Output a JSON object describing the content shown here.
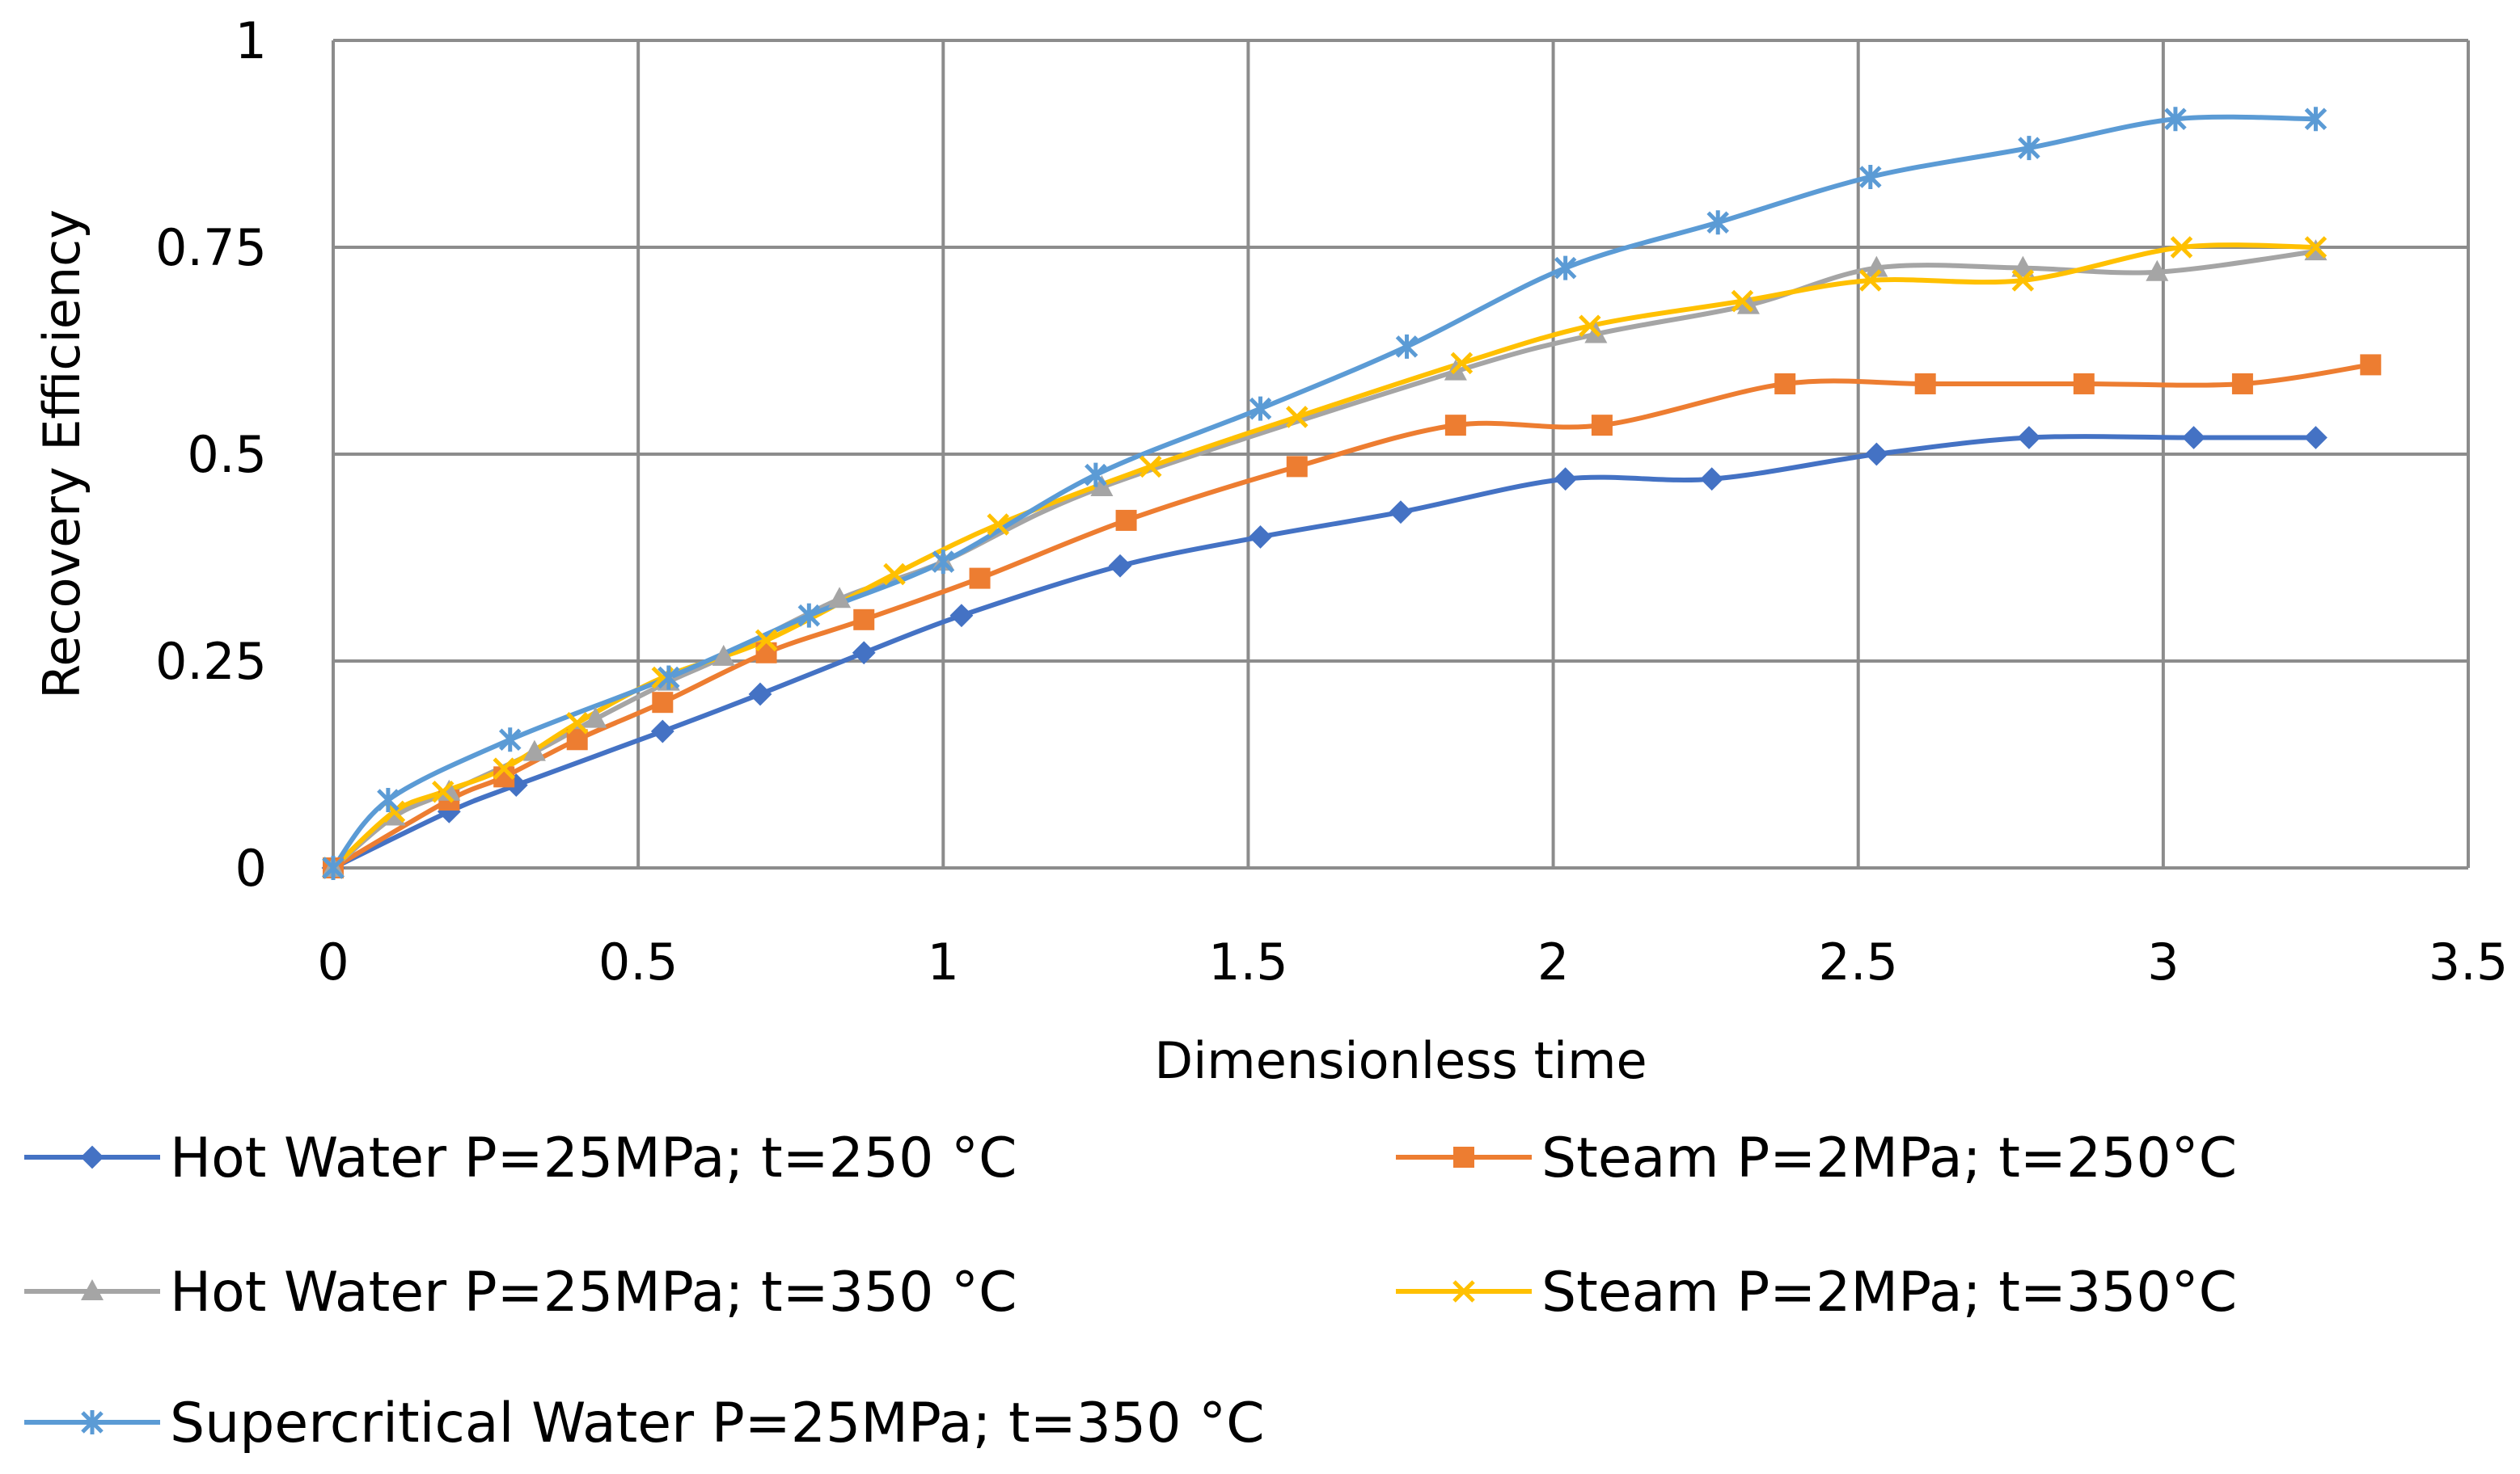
{
  "chart_data": {
    "type": "line",
    "title": "",
    "xlabel": "Dimensionless time",
    "ylabel": "Recovery Efficiency",
    "xlim": [
      0,
      3.5
    ],
    "ylim": [
      0,
      1
    ],
    "xticks": [
      0,
      0.5,
      1,
      1.5,
      2,
      2.5,
      3,
      3.5
    ],
    "yticks": [
      0,
      0.25,
      0.5,
      0.75,
      1
    ],
    "xtick_labels": [
      "0",
      "0.5",
      "1",
      "1.5",
      "2",
      "2.5",
      "3",
      "3.5"
    ],
    "ytick_labels": [
      "0",
      "0.25",
      "0.5",
      "0.75",
      "1"
    ],
    "grid": true,
    "legend_position": "bottom",
    "series": [
      {
        "name": "Hot Water P=25MPa; t=250 °C",
        "color": "#4472C4",
        "marker": "diamond",
        "x": [
          0,
          0.19,
          0.3,
          0.54,
          0.7,
          0.87,
          1.03,
          1.29,
          1.52,
          1.75,
          2.02,
          2.26,
          2.53,
          2.78,
          3.05,
          3.25
        ],
        "y": [
          0,
          0.068,
          0.1,
          0.165,
          0.21,
          0.26,
          0.305,
          0.365,
          0.4,
          0.43,
          0.47,
          0.47,
          0.5,
          0.52,
          0.52,
          0.52
        ]
      },
      {
        "name": "Steam P=2MPa; t=250°C",
        "color": "#ED7D31",
        "marker": "square",
        "x": [
          0,
          0.19,
          0.28,
          0.4,
          0.54,
          0.71,
          0.87,
          1.06,
          1.3,
          1.58,
          1.84,
          2.08,
          2.38,
          2.61,
          2.87,
          3.13,
          3.34
        ],
        "y": [
          0,
          0.082,
          0.11,
          0.155,
          0.2,
          0.26,
          0.3,
          0.35,
          0.42,
          0.485,
          0.535,
          0.535,
          0.585,
          0.585,
          0.585,
          0.585,
          0.608
        ]
      },
      {
        "name": "Hot Water P=25MPa; t=350 °C",
        "color": "#A5A5A5",
        "marker": "triangle",
        "x": [
          0,
          0.1,
          0.19,
          0.33,
          0.43,
          0.55,
          0.64,
          0.83,
          1.0,
          1.26,
          1.84,
          2.07,
          2.32,
          2.53,
          2.77,
          2.99,
          3.25
        ],
        "y": [
          0,
          0.062,
          0.092,
          0.14,
          0.18,
          0.225,
          0.255,
          0.325,
          0.37,
          0.46,
          0.6,
          0.645,
          0.68,
          0.725,
          0.725,
          0.72,
          0.745
        ]
      },
      {
        "name": "Steam P=2MPa; t=350°C",
        "color": "#FFC000",
        "marker": "x",
        "x": [
          0,
          0.1,
          0.18,
          0.28,
          0.4,
          0.54,
          0.71,
          0.92,
          1.09,
          1.34,
          1.58,
          1.85,
          2.06,
          2.31,
          2.52,
          2.77,
          3.03,
          3.25
        ],
        "y": [
          0,
          0.068,
          0.092,
          0.12,
          0.175,
          0.23,
          0.275,
          0.355,
          0.415,
          0.485,
          0.545,
          0.61,
          0.655,
          0.685,
          0.71,
          0.71,
          0.75,
          0.75
        ]
      },
      {
        "name": "Supercritical Water P=25MPa; t=350 °C",
        "color": "#5B9BD5",
        "marker": "star",
        "x": [
          0,
          0.09,
          0.29,
          0.55,
          0.78,
          1.0,
          1.25,
          1.52,
          1.76,
          2.02,
          2.27,
          2.52,
          2.78,
          3.02,
          3.25
        ],
        "y": [
          0,
          0.082,
          0.155,
          0.23,
          0.305,
          0.37,
          0.475,
          0.555,
          0.63,
          0.725,
          0.78,
          0.835,
          0.87,
          0.905,
          0.905
        ]
      }
    ]
  }
}
